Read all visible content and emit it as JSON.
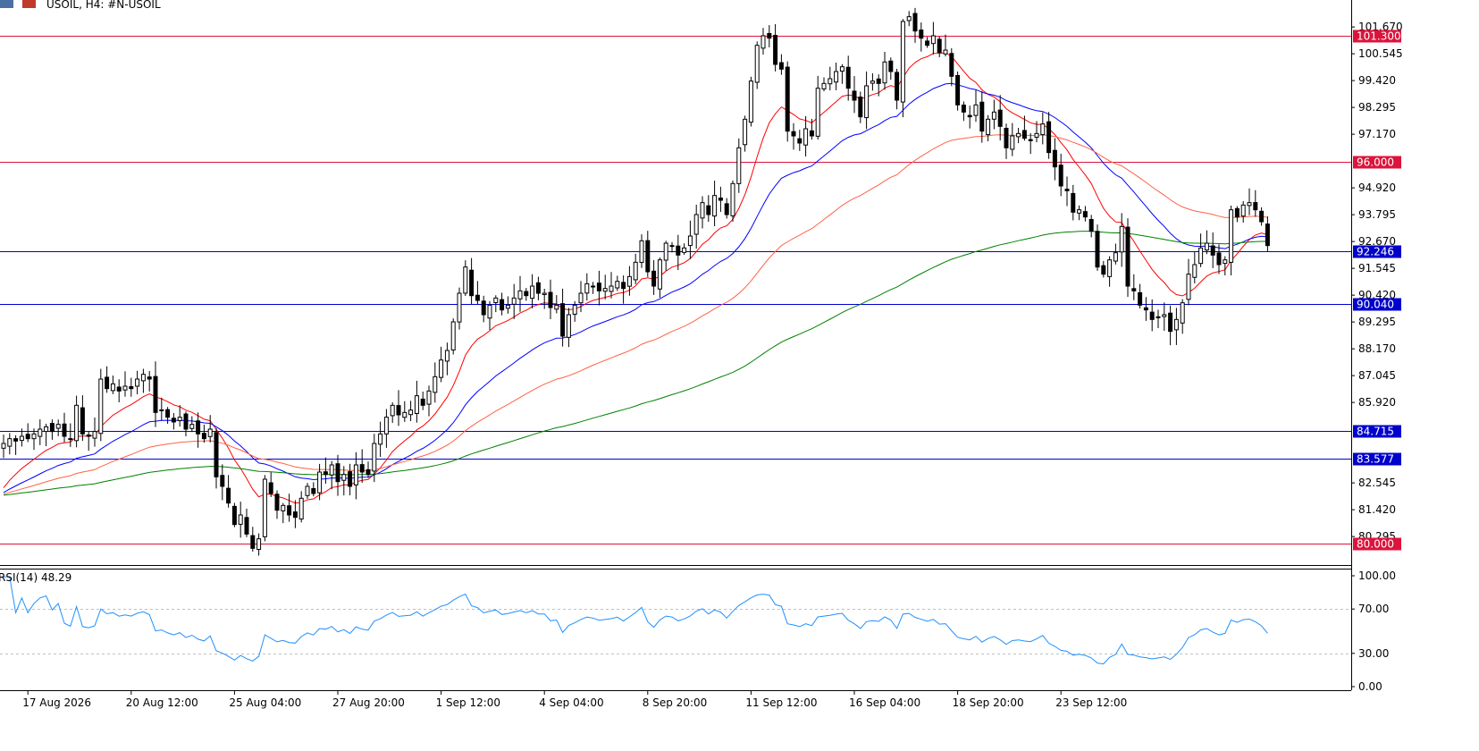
{
  "header": {
    "title": "USOIL, H4:  #N-USOIL"
  },
  "colors": {
    "bull_body": "#ffffff",
    "bear_body": "#000000",
    "wick": "#000000",
    "ema_fast": "#ff0000",
    "ema_mid": "#0000ff",
    "ema_slow": "#ff6347",
    "ema_long": "#008000",
    "rsi_line": "#1e90ff",
    "level_red": "#dc143c",
    "level_blue": "#0000cd",
    "grid_dot": "#c0c0c0"
  },
  "chart_data": {
    "type": "candlestick",
    "symbol": "USOIL",
    "timeframe": "H4",
    "price_axis": {
      "ylim": [
        79.1,
        102.8
      ],
      "ticks": [
        "101.670",
        "100.545",
        "99.420",
        "98.295",
        "97.170",
        "94.920",
        "93.795",
        "92.670",
        "91.545",
        "90.420",
        "89.295",
        "88.170",
        "87.045",
        "85.920",
        "82.545",
        "81.420",
        "80.295"
      ]
    },
    "time_axis": {
      "labels": [
        "17 Aug 2026",
        "20 Aug 12:00",
        "25 Aug 04:00",
        "27 Aug 20:00",
        "1 Sep 12:00",
        "4 Sep 04:00",
        "8 Sep 20:00",
        "11 Sep 12:00",
        "16 Sep 04:00",
        "18 Sep 20:00",
        "23 Sep 12:00"
      ],
      "label_bar_index": [
        4,
        21,
        38,
        55,
        72,
        89,
        106,
        123,
        140,
        157,
        174
      ]
    },
    "levels": [
      {
        "price": 101.3,
        "label": "101.300",
        "color": "red"
      },
      {
        "price": 96.0,
        "label": "96.000",
        "color": "red"
      },
      {
        "price": 92.246,
        "label": "92.246",
        "color": "blue"
      },
      {
        "price": 90.04,
        "label": "90.040",
        "color": "blue"
      },
      {
        "price": 84.715,
        "label": "84.715",
        "color": "blue"
      },
      {
        "price": 83.577,
        "label": "83.577",
        "color": "blue"
      },
      {
        "price": 80.0,
        "label": "80.000",
        "color": "red"
      }
    ],
    "close": [
      84.2,
      84.4,
      84.3,
      84.5,
      84.4,
      84.6,
      84.8,
      84.9,
      84.7,
      85.0,
      84.5,
      84.4,
      85.8,
      84.6,
      84.5,
      84.7,
      86.9,
      86.5,
      86.7,
      86.4,
      86.6,
      86.5,
      86.9,
      87.1,
      86.9,
      85.5,
      85.6,
      85.3,
      85.1,
      85.3,
      84.8,
      85.0,
      84.6,
      84.4,
      84.8,
      82.8,
      82.4,
      81.7,
      80.8,
      81.2,
      80.4,
      79.8,
      80.2,
      82.7,
      82.1,
      81.4,
      81.6,
      81.2,
      81.1,
      81.9,
      82.4,
      82.1,
      83.0,
      82.9,
      83.3,
      82.6,
      82.9,
      82.4,
      83.3,
      83.0,
      82.9,
      84.2,
      84.6,
      85.3,
      85.8,
      85.4,
      85.5,
      85.6,
      86.2,
      85.8,
      86.4,
      87.0,
      87.7,
      88.1,
      89.3,
      90.5,
      91.6,
      90.4,
      90.2,
      89.6,
      90.0,
      90.3,
      89.8,
      90.0,
      90.3,
      90.6,
      90.4,
      90.8,
      90.5,
      90.5,
      89.9,
      90.0,
      88.7,
      89.6,
      90.0,
      90.5,
      90.9,
      90.8,
      90.6,
      90.7,
      90.8,
      91.0,
      90.7,
      91.2,
      91.8,
      92.7,
      91.4,
      90.8,
      91.9,
      92.6,
      92.5,
      92.1,
      92.4,
      92.9,
      93.8,
      94.3,
      93.8,
      94.6,
      94.4,
      93.8,
      95.1,
      96.6,
      97.8,
      99.4,
      100.9,
      101.3,
      101.2,
      100.1,
      99.9,
      97.3,
      97.1,
      96.8,
      97.4,
      97.1,
      99.1,
      99.3,
      99.5,
      99.8,
      100.0,
      99.1,
      98.6,
      97.9,
      99.2,
      99.4,
      99.3,
      100.2,
      99.8,
      98.6,
      101.9,
      102.1,
      101.5,
      101.2,
      100.9,
      101.3,
      100.6,
      100.7,
      99.6,
      98.4,
      98.1,
      97.9,
      98.4,
      97.3,
      97.8,
      98.1,
      97.5,
      96.6,
      97.1,
      97.2,
      97.0,
      96.9,
      97.2,
      97.6,
      96.4,
      95.8,
      95.0,
      94.8,
      93.9,
      94.0,
      93.7,
      93.1,
      91.6,
      91.3,
      91.9,
      92.2,
      93.3,
      90.8,
      90.6,
      90.0,
      89.8,
      89.4,
      89.5,
      89.6,
      88.9,
      89.4,
      90.1,
      91.3,
      91.7,
      92.4,
      92.6,
      92.1,
      91.7,
      91.9,
      94.0,
      93.7,
      94.2,
      94.3,
      94.0,
      93.5,
      92.5
    ],
    "rsi": {
      "label": "RSI(14) 48.29",
      "period": 14,
      "last": 48.29,
      "ylim": [
        0,
        100
      ],
      "ticks": [
        "100.00",
        "70.00",
        "30.00",
        "0.00"
      ],
      "levels": [
        70,
        30
      ]
    }
  }
}
